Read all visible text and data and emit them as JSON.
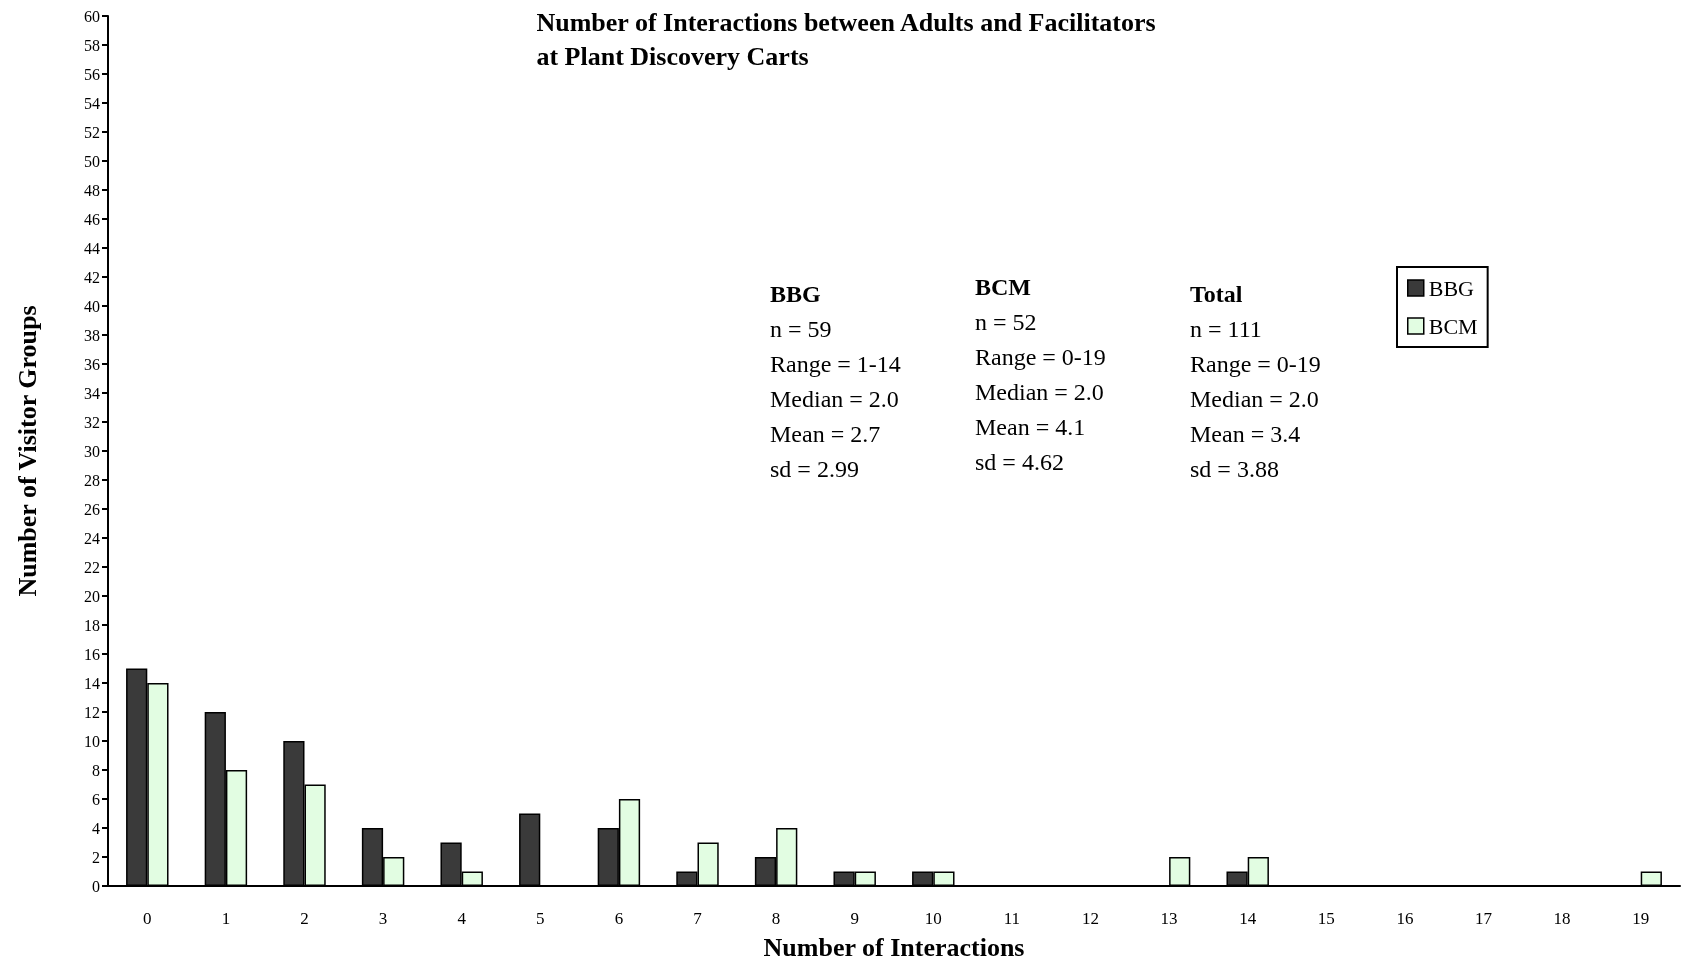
{
  "chart_data": {
    "type": "bar",
    "title": "Number of Interactions between Adults and Facilitators\nat Plant Discovery Carts",
    "xlabel": "Number of Interactions",
    "ylabel": "Number of Visitor Groups",
    "categories": [
      "0",
      "1",
      "2",
      "3",
      "4",
      "5",
      "6",
      "7",
      "8",
      "9",
      "10",
      "11",
      "12",
      "13",
      "14",
      "15",
      "16",
      "17",
      "18",
      "19"
    ],
    "series": [
      {
        "name": "BBG",
        "color": "#3a3a3a",
        "values": [
          15,
          12,
          10,
          4,
          3,
          5,
          4,
          1,
          2,
          1,
          1,
          0,
          0,
          0,
          1,
          0,
          0,
          0,
          0,
          0
        ]
      },
      {
        "name": "BCM",
        "color": "#e2fde2",
        "values": [
          14,
          8,
          7,
          2,
          1,
          0,
          6,
          3,
          4,
          1,
          1,
          0,
          0,
          2,
          2,
          0,
          0,
          0,
          0,
          1
        ]
      }
    ],
    "ylim": [
      0,
      60
    ],
    "yticks": [
      0,
      2,
      4,
      6,
      8,
      10,
      12,
      14,
      16,
      18,
      20,
      22,
      24,
      26,
      28,
      30,
      32,
      34,
      36,
      38,
      40,
      42,
      44,
      46,
      48,
      50,
      52,
      54,
      56,
      58,
      60
    ],
    "grid": false,
    "legend": "top right",
    "annotations": [
      "BBG\nn = 59\nRange = 1-14\nMedian = 2.0\nMean = 2.7\nsd = 2.99",
      "BCM\nn = 52\nRange = 0-19\nMedian = 2.0\nMean = 4.1\nsd = 4.62",
      "Total\nn = 111\nRange = 0-19\nMedian = 2.0\nMean = 3.4\nsd = 3.88"
    ]
  }
}
